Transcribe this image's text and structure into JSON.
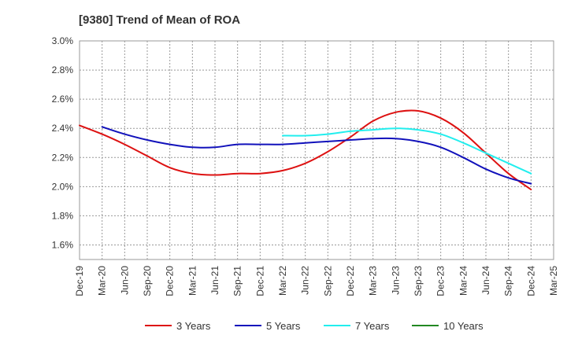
{
  "chart_data": {
    "type": "line",
    "title": "[9380]  Trend of Mean of ROA",
    "xlabel": "",
    "ylabel": "",
    "ylim": [
      1.5,
      3.0
    ],
    "y_ticks": [
      "1.6%",
      "1.8%",
      "2.0%",
      "2.2%",
      "2.4%",
      "2.6%",
      "2.8%",
      "3.0%"
    ],
    "y_tick_values": [
      1.6,
      1.8,
      2.0,
      2.2,
      2.4,
      2.6,
      2.8,
      3.0
    ],
    "x_ticks": [
      "Dec-19",
      "Mar-20",
      "Jun-20",
      "Sep-20",
      "Dec-20",
      "Mar-21",
      "Jun-21",
      "Sep-21",
      "Dec-21",
      "Mar-22",
      "Jun-22",
      "Sep-22",
      "Dec-22",
      "Mar-23",
      "Jun-23",
      "Sep-23",
      "Dec-23",
      "Mar-24",
      "Jun-24",
      "Sep-24",
      "Dec-24",
      "Mar-25"
    ],
    "grid": true,
    "legend_position": "bottom",
    "series": [
      {
        "name": "3 Years",
        "color": "#dd1111",
        "start_index": 0,
        "values": [
          2.42,
          2.36,
          2.29,
          2.21,
          2.13,
          2.09,
          2.08,
          2.09,
          2.09,
          2.11,
          2.16,
          2.24,
          2.34,
          2.45,
          2.51,
          2.52,
          2.47,
          2.37,
          2.23,
          2.09,
          1.98
        ]
      },
      {
        "name": "5 Years",
        "color": "#1111bb",
        "start_index": 1,
        "values": [
          2.41,
          2.36,
          2.32,
          2.29,
          2.27,
          2.27,
          2.29,
          2.29,
          2.29,
          2.3,
          2.31,
          2.32,
          2.33,
          2.33,
          2.31,
          2.27,
          2.2,
          2.12,
          2.06,
          2.02
        ]
      },
      {
        "name": "7 Years",
        "color": "#22eeee",
        "start_index": 9,
        "values": [
          2.35,
          2.35,
          2.36,
          2.38,
          2.39,
          2.4,
          2.39,
          2.36,
          2.3,
          2.23,
          2.16,
          2.09
        ]
      },
      {
        "name": "10 Years",
        "color": "#228822",
        "start_index": 0,
        "values": []
      }
    ]
  }
}
